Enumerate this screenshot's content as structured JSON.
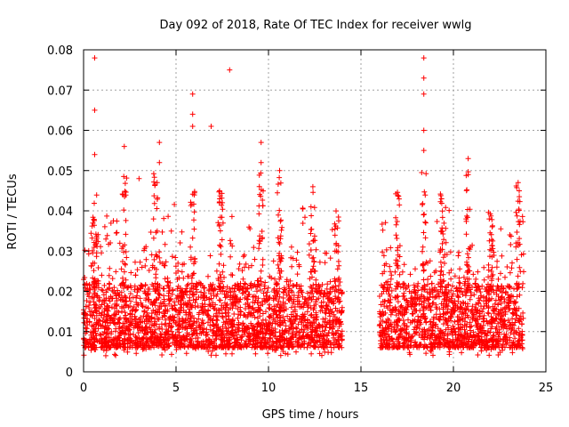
{
  "chart_data": {
    "type": "scatter",
    "title": "Day 092 of 2018, Rate Of TEC Index for receiver wwlg",
    "xlabel": "GPS time / hours",
    "ylabel": "ROTI / TECUs",
    "xlim": [
      0,
      25
    ],
    "ylim": [
      0,
      0.08
    ],
    "xticks": [
      0,
      5,
      10,
      15,
      20,
      25
    ],
    "yticks": [
      0,
      0.01,
      0.02,
      0.03,
      0.04,
      0.05,
      0.06,
      0.07,
      0.08
    ],
    "ytick_labels": [
      "0",
      "0.01",
      "0.02",
      "0.03",
      "0.04",
      "0.05",
      "0.06",
      "0.07",
      "0.08"
    ],
    "grid": true,
    "marker": "+",
    "color": "#ff0000",
    "data_gaps_hours": [
      [
        14.0,
        16.0
      ]
    ],
    "series": [
      {
        "name": "ROTI",
        "typical_range": [
          0.004,
          0.03
        ],
        "notable_points": [
          {
            "x": 0.6,
            "y": 0.078
          },
          {
            "x": 0.6,
            "y": 0.065
          },
          {
            "x": 0.6,
            "y": 0.054
          },
          {
            "x": 2.2,
            "y": 0.056
          },
          {
            "x": 3.0,
            "y": 0.048
          },
          {
            "x": 4.1,
            "y": 0.057
          },
          {
            "x": 4.1,
            "y": 0.052
          },
          {
            "x": 5.9,
            "y": 0.069
          },
          {
            "x": 5.9,
            "y": 0.064
          },
          {
            "x": 5.9,
            "y": 0.061
          },
          {
            "x": 6.9,
            "y": 0.061
          },
          {
            "x": 7.9,
            "y": 0.075
          },
          {
            "x": 9.6,
            "y": 0.057
          },
          {
            "x": 9.6,
            "y": 0.052
          },
          {
            "x": 10.6,
            "y": 0.05
          },
          {
            "x": 12.4,
            "y": 0.046
          },
          {
            "x": 18.4,
            "y": 0.078
          },
          {
            "x": 18.4,
            "y": 0.073
          },
          {
            "x": 18.4,
            "y": 0.069
          },
          {
            "x": 18.4,
            "y": 0.06
          },
          {
            "x": 18.4,
            "y": 0.055
          },
          {
            "x": 20.8,
            "y": 0.053
          },
          {
            "x": 20.8,
            "y": 0.049
          },
          {
            "x": 23.5,
            "y": 0.047
          }
        ]
      }
    ]
  }
}
